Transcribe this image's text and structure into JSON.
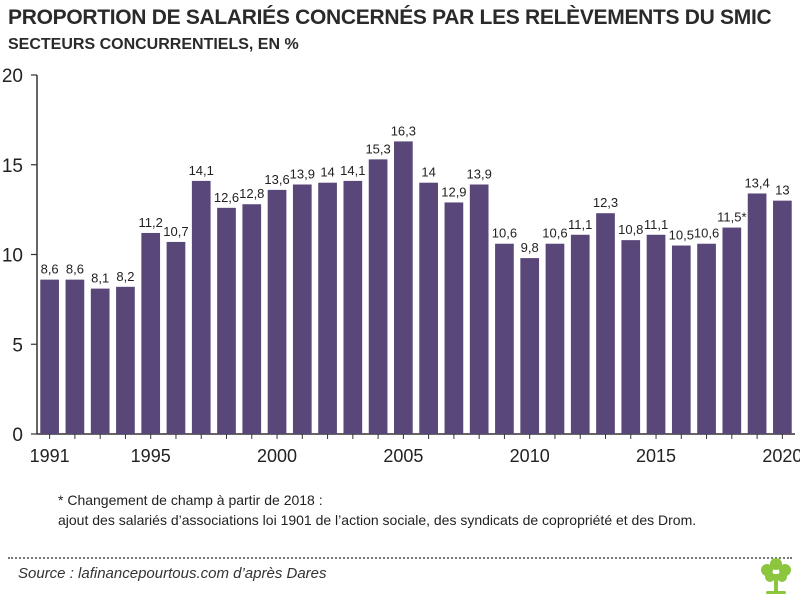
{
  "title": "PROPORTION DE SALARIÉS CONCERNÉS PAR LES RELÈVEMENTS DU SMIC",
  "subtitle": "SECTEURS CONCURRENTIELS, EN %",
  "footnote": {
    "line1": "* Changement de champ à partir de 2018 :",
    "line2": "ajout des salariés d’associations loi 1901 de l’action sociale, des syndicats de copropriété et des Drom."
  },
  "source": "Source : lafinancepourtous.com d’après Dares",
  "colors": {
    "bar": "#594779",
    "axis": "#333333",
    "dots": "#777777",
    "logo": "#8cc63f"
  },
  "logo_icon": "tree-icon",
  "chart_data": {
    "type": "bar",
    "title": "PROPORTION DE SALARIÉS CONCERNÉS PAR LES RELÈVEMENTS DU SMIC",
    "subtitle": "SECTEURS CONCURRENTIELS, EN %",
    "xlabel": "",
    "ylabel": "",
    "ylim": [
      0,
      20
    ],
    "yticks": [
      0,
      5,
      10,
      15,
      20
    ],
    "grid": false,
    "categories": [
      1991,
      1992,
      1993,
      1994,
      1995,
      1996,
      1997,
      1998,
      1999,
      2000,
      2001,
      2002,
      2003,
      2004,
      2005,
      2006,
      2007,
      2008,
      2009,
      2010,
      2011,
      2012,
      2013,
      2014,
      2015,
      2016,
      2017,
      2018,
      2019,
      2020
    ],
    "xtick_labels": [
      "1991",
      "1995",
      "2000",
      "2005",
      "2010",
      "2015",
      "2020"
    ],
    "values": [
      8.6,
      8.6,
      8.1,
      8.2,
      11.2,
      10.7,
      14.1,
      12.6,
      12.8,
      13.6,
      13.9,
      14,
      14.1,
      15.3,
      16.3,
      14,
      12.9,
      13.9,
      10.6,
      9.8,
      10.6,
      11.1,
      12.3,
      10.8,
      11.1,
      10.5,
      10.6,
      11.5,
      13.4,
      13
    ],
    "value_labels": [
      "8,6",
      "8,6",
      "8,1",
      "8,2",
      "11,2",
      "10,7",
      "14,1",
      "12,6",
      "12,8",
      "13,6",
      "13,9",
      "14",
      "14,1",
      "15,3",
      "16,3",
      "14",
      "12,9",
      "13,9",
      "10,6",
      "9,8",
      "10,6",
      "11,1",
      "12,3",
      "10,8",
      "11,1",
      "10,5",
      "10,6",
      "11,5*",
      "13,4",
      "13"
    ]
  }
}
